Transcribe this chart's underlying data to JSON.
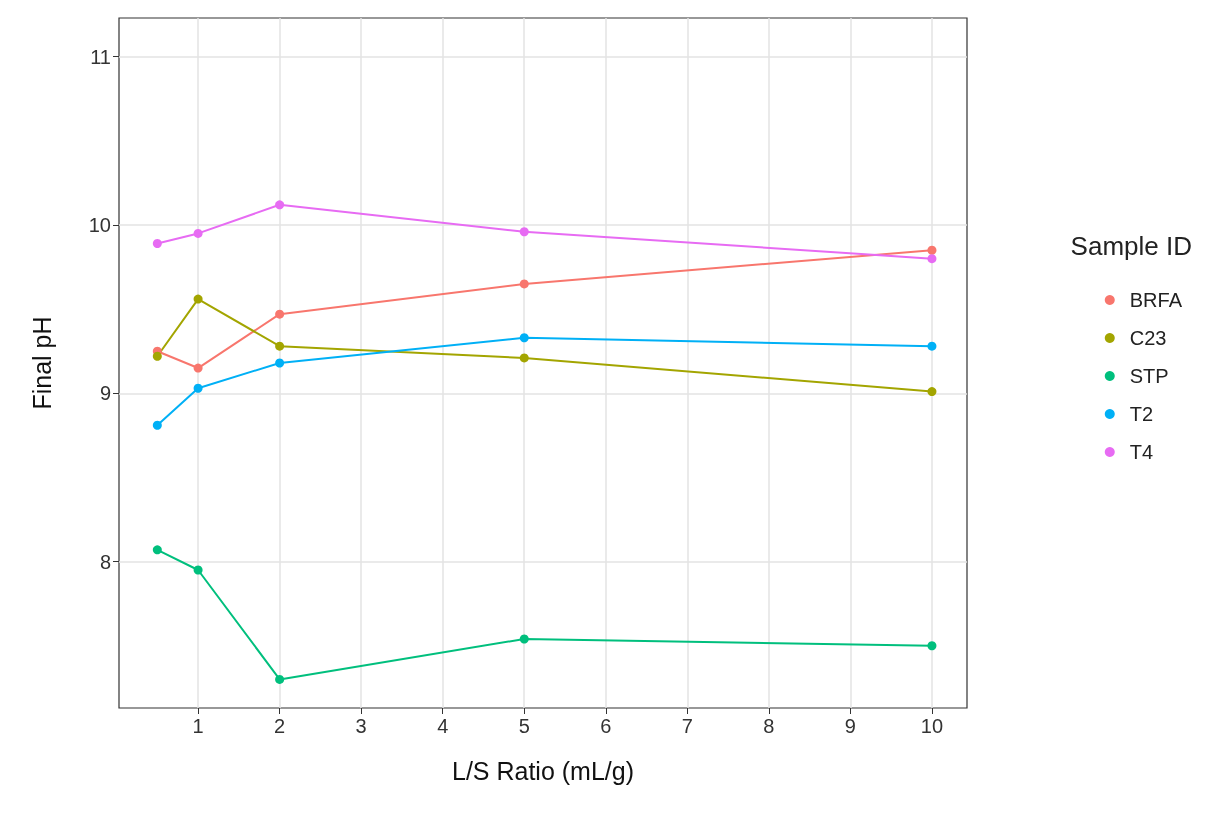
{
  "chart_data": {
    "type": "line",
    "xlabel": "L/S Ratio (mL/g)",
    "ylabel": "Final pH",
    "legend_title": "Sample ID",
    "legend": "right",
    "marker": "circle",
    "grid": true,
    "xlim": [
      0.03,
      10.43
    ],
    "xticks": [
      1,
      2,
      3,
      4,
      5,
      6,
      7,
      8,
      9,
      10
    ],
    "ylim": [
      7.13,
      11.23
    ],
    "yticks": [
      8,
      9,
      10,
      11
    ],
    "x": [
      0.5,
      1,
      2,
      5,
      10
    ],
    "series": [
      {
        "name": "BRFA",
        "color": "#F8766D",
        "values": [
          9.25,
          9.15,
          9.47,
          9.65,
          9.85
        ]
      },
      {
        "name": "C23",
        "color": "#A3A500",
        "values": [
          9.22,
          9.56,
          9.28,
          9.21,
          9.01
        ]
      },
      {
        "name": "STP",
        "color": "#00BF7D",
        "values": [
          8.07,
          7.95,
          7.3,
          7.54,
          7.5
        ]
      },
      {
        "name": "T2",
        "color": "#00B0F6",
        "values": [
          8.81,
          9.03,
          9.18,
          9.33,
          9.28
        ]
      },
      {
        "name": "T4",
        "color": "#E76BF3",
        "values": [
          9.89,
          9.95,
          10.12,
          9.96,
          9.8
        ]
      }
    ]
  }
}
